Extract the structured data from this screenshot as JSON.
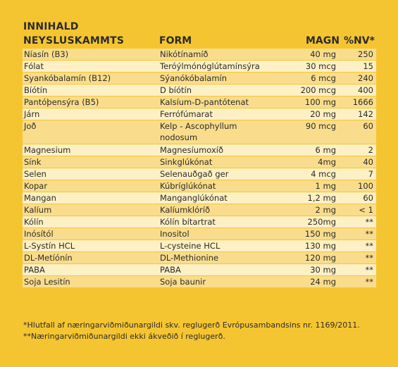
{
  "header": {
    "title": "INNIHALD",
    "col_nutrient": "NEYSLUSKAMMTS",
    "col_form": "FORM",
    "col_amount": "MAGN",
    "col_nv": "%NV*"
  },
  "rows": [
    {
      "nutrient": "Níasín (B3)",
      "form": "Nikótínamíð",
      "amount": "40 mg",
      "nv": "250"
    },
    {
      "nutrient": "Fólat",
      "form": "Teróýlmónóglútamínsýra",
      "amount": "30 mcg",
      "nv": "15"
    },
    {
      "nutrient": "Syankóbalamín (B12)",
      "form": "Sýanókóbalamín",
      "amount": "6 mcg",
      "nv": "240"
    },
    {
      "nutrient": "Bíótín",
      "form": "D bíótín",
      "amount": "200 mcg",
      "nv": "400"
    },
    {
      "nutrient": "Pantóþensýra (B5)",
      "form": "Kalsíum-D-pantótenat",
      "amount": "100 mg",
      "nv": "1666"
    },
    {
      "nutrient": "Járn",
      "form": "Ferrófúmarat",
      "amount": "20 mg",
      "nv": "142"
    },
    {
      "nutrient": "Joð",
      "form": "Kelp - Ascophyllum nodosum",
      "amount": "90 mcg",
      "nv": "60"
    },
    {
      "nutrient": "Magnesium",
      "form": "Magnesíumoxíð",
      "amount": "6 mg",
      "nv": "2"
    },
    {
      "nutrient": "Sínk",
      "form": "Sinkglúkónat",
      "amount": "4mg",
      "nv": "40"
    },
    {
      "nutrient": "Selen",
      "form": "Selenauðgað ger",
      "amount": "4 mcg",
      "nv": "7"
    },
    {
      "nutrient": "Kopar",
      "form": "Kúbríglúkónat",
      "amount": "1 mg",
      "nv": "100"
    },
    {
      "nutrient": "Mangan",
      "form": "Manganglúkónat",
      "amount": "1,2 mg",
      "nv": "60"
    },
    {
      "nutrient": "Kalíum",
      "form": "Kalíumklóríð",
      "amount": "2 mg",
      "nv": "< 1"
    },
    {
      "nutrient": "Kólín",
      "form": "Kólín bítartrat",
      "amount": "250mg",
      "nv": "**"
    },
    {
      "nutrient": "Inósítól",
      "form": "Inositol",
      "amount": "150 mg",
      "nv": "**"
    },
    {
      "nutrient": "L-Systín HCL",
      "form": "L-cysteine HCL",
      "amount": "130 mg",
      "nv": "**"
    },
    {
      "nutrient": "DL-Metíónín",
      "form": "DL-Methionine",
      "amount": "120 mg",
      "nv": "**"
    },
    {
      "nutrient": "PABA",
      "form": "PABA",
      "amount": "30 mg",
      "nv": "**"
    },
    {
      "nutrient": "Soja Lesitín",
      "form": "Soja baunir",
      "amount": "24 mg",
      "nv": "**"
    }
  ],
  "footnotes": {
    "f1": "*Hlutfall af næringarviðmiðunargildi skv. reglugerð Evrópusambandsins nr. 1169/2011.",
    "f2": "**Næringarviðmiðunargildi ekki ákveðið í reglugerð."
  },
  "colors": {
    "background": "#f5c531",
    "row_a": "#f9dd8c",
    "row_b": "#fdf0c4"
  }
}
